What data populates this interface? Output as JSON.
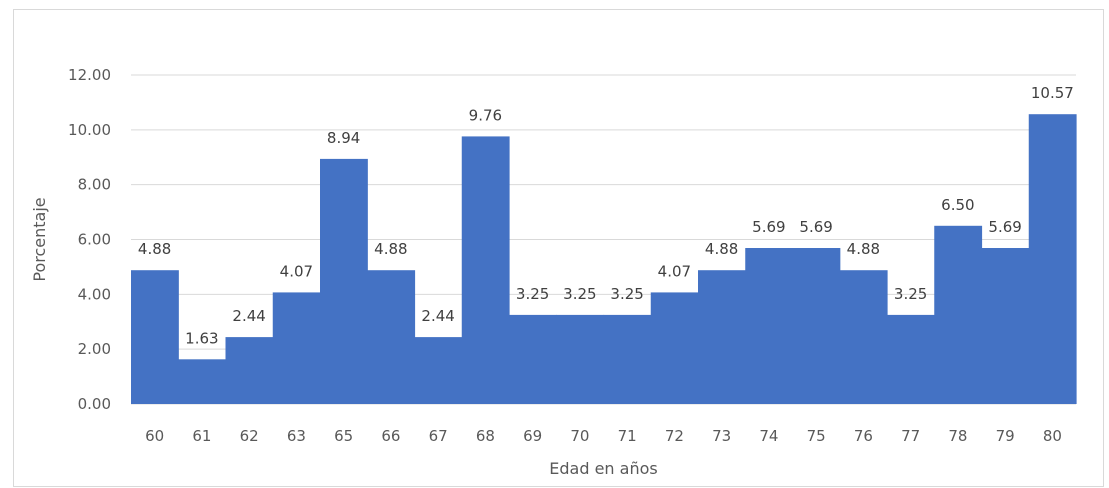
{
  "chart_data": {
    "type": "bar",
    "title": "",
    "xlabel": "Edad en años",
    "ylabel": "Porcentaje",
    "ylim": [
      0,
      12
    ],
    "yticks": [
      "0.00",
      "2.00",
      "4.00",
      "6.00",
      "8.00",
      "10.00",
      "12.00"
    ],
    "categories": [
      "60",
      "61",
      "62",
      "63",
      "65",
      "66",
      "67",
      "68",
      "69",
      "70",
      "71",
      "72",
      "73",
      "74",
      "75",
      "76",
      "77",
      "78",
      "79",
      "80"
    ],
    "values": [
      4.88,
      1.63,
      2.44,
      4.07,
      8.94,
      4.88,
      2.44,
      9.76,
      3.25,
      3.25,
      3.25,
      4.07,
      4.88,
      5.69,
      5.69,
      4.88,
      3.25,
      6.5,
      5.69,
      10.57
    ],
    "value_labels": [
      "4.88",
      "1.63",
      "2.44",
      "4.07",
      "8.94",
      "4.88",
      "2.44",
      "9.76",
      "3.25",
      "3.25",
      "3.25",
      "4.07",
      "4.88",
      "5.69",
      "5.69",
      "4.88",
      "3.25",
      "6.50",
      "5.69",
      "10.57"
    ],
    "bar_color": "#4472c4",
    "gridline_color": "#d9d9d9",
    "grid": true,
    "legend": "none"
  }
}
